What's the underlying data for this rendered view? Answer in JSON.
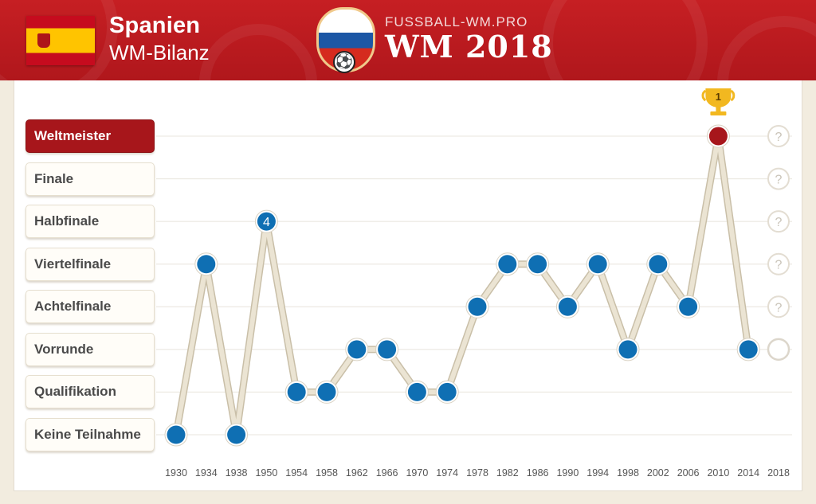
{
  "header": {
    "country": "Spanien",
    "subtitle": "WM-Bilanz",
    "brand_small": "FUSSBALL-WM.PRO",
    "brand_big": "WM 2018"
  },
  "colors": {
    "header": "#b81a1f",
    "point": "#0f6fb3",
    "champion": "#a7161b",
    "line": "#ebe4d3",
    "trophy": "#f2b820"
  },
  "chart_data": {
    "type": "line",
    "title": "",
    "xlabel": "",
    "ylabel": "",
    "x": [
      "1930",
      "1934",
      "1938",
      "1950",
      "1954",
      "1958",
      "1962",
      "1966",
      "1970",
      "1974",
      "1978",
      "1982",
      "1986",
      "1990",
      "1994",
      "1998",
      "2002",
      "2006",
      "2010",
      "2014",
      "2018"
    ],
    "y_levels": [
      "Keine Teilnahme",
      "Qualifikation",
      "Vorrunde",
      "Achtelfinale",
      "Viertelfinale",
      "Halbfinale",
      "Finale",
      "Weltmeister"
    ],
    "series": [
      {
        "values": [
          "Keine Teilnahme",
          "Viertelfinale",
          "Keine Teilnahme",
          "Halbfinale",
          "Qualifikation",
          "Qualifikation",
          "Vorrunde",
          "Vorrunde",
          "Qualifikation",
          "Qualifikation",
          "Achtelfinale",
          "Viertelfinale",
          "Viertelfinale",
          "Achtelfinale",
          "Viertelfinale",
          "Vorrunde",
          "Viertelfinale",
          "Achtelfinale",
          "Weltmeister",
          "Vorrunde",
          null
        ]
      }
    ],
    "annotations": [
      {
        "x": "1950",
        "label": "4"
      },
      {
        "x": "2010",
        "label": "1",
        "icon": "trophy-icon"
      }
    ],
    "open_2018": {
      "x": "2018",
      "marker": "?",
      "levels": [
        "Weltmeister",
        "Finale",
        "Halbfinale",
        "Viertelfinale",
        "Achtelfinale"
      ]
    }
  }
}
